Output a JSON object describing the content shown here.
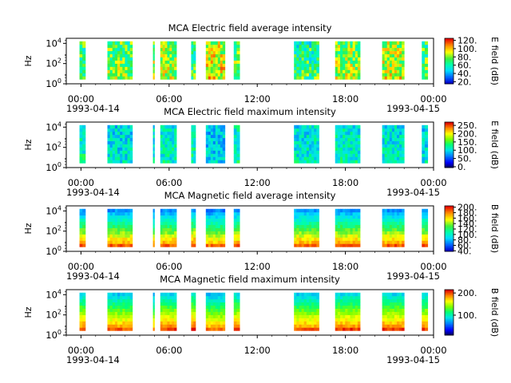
{
  "chart_data": [
    {
      "type": "heatmap",
      "title": "MCA  Electric field average intensity",
      "ylabel": "Hz",
      "y_ticks": [
        "10",
        "10",
        "10"
      ],
      "y_exponents": [
        "0",
        "2",
        "4"
      ],
      "ylim_log10": [
        0,
        4.5
      ],
      "x_ticks": [
        "00:00",
        "06:00",
        "12:00",
        "18:00",
        "00:00"
      ],
      "x_start_date": "1993-04-14",
      "x_end_date": "1993-04-15",
      "colorbar_label": "E field (dB)",
      "colorbar_ticks": [
        "20.",
        "40.",
        "60.",
        "80.",
        "100.",
        "120."
      ],
      "colorbar_range": [
        15,
        125
      ],
      "colorscale": "avg",
      "data_intervals_hours": [
        [
          -0.1,
          0.3
        ],
        [
          1.8,
          3.5
        ],
        [
          4.9,
          5.0
        ],
        [
          5.4,
          6.5
        ],
        [
          7.5,
          7.8
        ],
        [
          8.5,
          9.8
        ],
        [
          10.4,
          10.8
        ],
        [
          14.5,
          16.2
        ],
        [
          17.3,
          19.0
        ],
        [
          20.5,
          22.0
        ],
        [
          23.2,
          23.6
        ]
      ],
      "dominant_values_db": [
        75,
        80,
        90,
        85,
        70,
        95,
        80,
        70,
        85,
        90,
        75
      ]
    },
    {
      "type": "heatmap",
      "title": "MCA  Electric field maximum intensity",
      "ylabel": "Hz",
      "y_ticks": [
        "10",
        "10",
        "10"
      ],
      "y_exponents": [
        "0",
        "2",
        "4"
      ],
      "ylim_log10": [
        0,
        4.5
      ],
      "x_ticks": [
        "00:00",
        "06:00",
        "12:00",
        "18:00",
        "00:00"
      ],
      "x_start_date": "1993-04-14",
      "x_end_date": "1993-04-15",
      "colorbar_label": "E field (dB)",
      "colorbar_ticks": [
        "0.",
        "50.",
        "100.",
        "150.",
        "200.",
        "250."
      ],
      "colorbar_range": [
        -5,
        270
      ],
      "colorscale": "max",
      "data_intervals_hours": [
        [
          -0.1,
          0.3
        ],
        [
          1.8,
          3.5
        ],
        [
          4.9,
          5.0
        ],
        [
          5.4,
          6.5
        ],
        [
          7.5,
          7.8
        ],
        [
          8.5,
          9.8
        ],
        [
          10.4,
          10.8
        ],
        [
          14.5,
          16.2
        ],
        [
          17.3,
          19.0
        ],
        [
          20.5,
          22.0
        ],
        [
          23.2,
          23.6
        ]
      ],
      "dominant_values_db": [
        120,
        105,
        110,
        115,
        120,
        95,
        120,
        110,
        115,
        110,
        105
      ]
    },
    {
      "type": "heatmap",
      "title": "MCA  Magnetic field average intensity",
      "ylabel": "Hz",
      "y_ticks": [
        "10",
        "10",
        "10"
      ],
      "y_exponents": [
        "0",
        "2",
        "4"
      ],
      "ylim_log10": [
        0,
        4.5
      ],
      "x_ticks": [
        "00:00",
        "06:00",
        "12:00",
        "18:00",
        "00:00"
      ],
      "x_start_date": "1993-04-14",
      "x_end_date": "1993-04-15",
      "colorbar_label": "B field (dB)",
      "colorbar_ticks": [
        "40.",
        "60.",
        "80.",
        "100.",
        "120.",
        "140.",
        "160.",
        "180.",
        "200."
      ],
      "colorbar_range": [
        38,
        205
      ],
      "colorscale": "avg",
      "data_intervals_hours": [
        [
          -0.1,
          0.3
        ],
        [
          1.8,
          3.5
        ],
        [
          4.9,
          5.0
        ],
        [
          5.4,
          6.5
        ],
        [
          7.5,
          7.8
        ],
        [
          8.5,
          9.8
        ],
        [
          10.4,
          10.8
        ],
        [
          14.5,
          16.2
        ],
        [
          17.3,
          19.0
        ],
        [
          20.5,
          22.0
        ],
        [
          23.2,
          23.6
        ]
      ],
      "dominant_values_db": [
        125,
        125,
        120,
        125,
        130,
        120,
        125,
        125,
        125,
        125,
        125
      ]
    },
    {
      "type": "heatmap",
      "title": "MCA  Magnetic field maximum intensity",
      "ylabel": "Hz",
      "y_ticks": [
        "10",
        "10",
        "10"
      ],
      "y_exponents": [
        "0",
        "2",
        "4"
      ],
      "ylim_log10": [
        0,
        4.5
      ],
      "x_ticks": [
        "00:00",
        "06:00",
        "12:00",
        "18:00",
        "00:00"
      ],
      "x_start_date": "1993-04-14",
      "x_end_date": "1993-04-15",
      "colorbar_label": "B field (dB)",
      "colorbar_ticks": [
        "100.",
        "200."
      ],
      "colorbar_range": [
        10,
        215
      ],
      "colorscale": "max",
      "data_intervals_hours": [
        [
          -0.1,
          0.3
        ],
        [
          1.8,
          3.5
        ],
        [
          4.9,
          5.0
        ],
        [
          5.4,
          6.5
        ],
        [
          7.5,
          7.8
        ],
        [
          8.5,
          9.8
        ],
        [
          10.4,
          10.8
        ],
        [
          14.5,
          16.2
        ],
        [
          17.3,
          19.0
        ],
        [
          20.5,
          22.0
        ],
        [
          23.2,
          23.6
        ]
      ],
      "dominant_values_db": [
        140,
        135,
        130,
        140,
        150,
        130,
        140,
        135,
        140,
        140,
        140
      ]
    }
  ]
}
